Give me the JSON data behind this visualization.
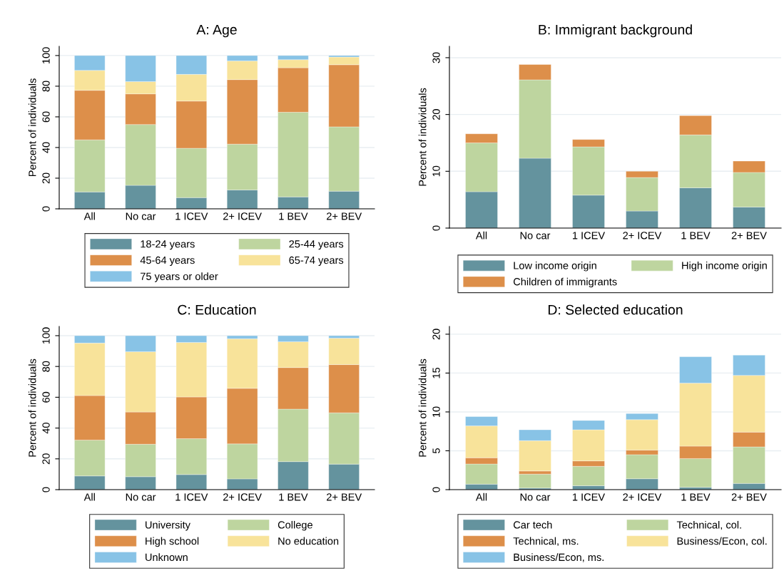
{
  "chart_data": [
    {
      "type": "bar",
      "stacked": true,
      "title": "A: Age",
      "ylabel": "Percent of individuals",
      "categories": [
        "All",
        "No car",
        "1 ICEV",
        "2+ ICEV",
        "1 BEV",
        "2+ BEV"
      ],
      "ylim": [
        0,
        106
      ],
      "yticks": [
        0,
        20,
        40,
        60,
        80,
        100
      ],
      "grid": "y",
      "legend": "bottom",
      "series": [
        {
          "name": "18-24 years",
          "color": "#64939e",
          "values": [
            11,
            15.3,
            7.3,
            12.3,
            7.8,
            11.5
          ]
        },
        {
          "name": "25-44 years",
          "color": "#bed59f",
          "values": [
            34,
            39.7,
            32.2,
            29.9,
            55.2,
            42
          ]
        },
        {
          "name": "45-64 years",
          "color": "#dd8f4a",
          "values": [
            32.3,
            20,
            30.8,
            42.1,
            29,
            40.5
          ]
        },
        {
          "name": "65-74 years",
          "color": "#f8e39a",
          "values": [
            13,
            8,
            17.4,
            12.2,
            5.3,
            5
          ]
        },
        {
          "name": "75 years or older",
          "color": "#88c3e6",
          "values": [
            9.7,
            17,
            12.3,
            3.5,
            2.7,
            1
          ]
        }
      ]
    },
    {
      "type": "bar",
      "stacked": true,
      "title": "B: Immigrant background",
      "ylabel": "Percent of individuals",
      "categories": [
        "All",
        "No car",
        "1 ICEV",
        "2+ ICEV",
        "1 BEV",
        "2+ BEV"
      ],
      "ylim": [
        0,
        32
      ],
      "yticks": [
        0,
        10,
        20,
        30
      ],
      "grid": "y",
      "legend": "bottom",
      "series": [
        {
          "name": "Low income origin",
          "color": "#64939e",
          "values": [
            6.4,
            12.3,
            5.8,
            3.0,
            7.1,
            3.7
          ]
        },
        {
          "name": "High income origin",
          "color": "#bed59f",
          "values": [
            8.6,
            13.8,
            8.5,
            5.9,
            9.3,
            6.1
          ]
        },
        {
          "name": "Children of immigrants",
          "color": "#dd8f4a",
          "values": [
            1.6,
            2.7,
            1.3,
            1.1,
            3.4,
            2.0
          ]
        }
      ]
    },
    {
      "type": "bar",
      "stacked": true,
      "title": "C: Education",
      "ylabel": "Percent of individuals",
      "categories": [
        "All",
        "No car",
        "1 ICEV",
        "2+ ICEV",
        "1 BEV",
        "2+ BEV"
      ],
      "ylim": [
        0,
        106
      ],
      "yticks": [
        0,
        20,
        40,
        60,
        80,
        100
      ],
      "grid": "y",
      "legend": "bottom",
      "series": [
        {
          "name": "University",
          "color": "#64939e",
          "values": [
            8.9,
            8.4,
            9.8,
            7.0,
            18.2,
            16.6
          ]
        },
        {
          "name": "College",
          "color": "#bed59f",
          "values": [
            23.3,
            21.1,
            23.3,
            22.7,
            34.1,
            33.3
          ]
        },
        {
          "name": "High school",
          "color": "#dd8f4a",
          "values": [
            28.9,
            20.9,
            27.1,
            36.1,
            27.0,
            31.3
          ]
        },
        {
          "name": "No education",
          "color": "#f8e39a",
          "values": [
            34.1,
            39.2,
            35.4,
            32.2,
            16.8,
            17.2
          ]
        },
        {
          "name": "Unknown",
          "color": "#88c3e6",
          "values": [
            4.8,
            10.4,
            4.4,
            2.0,
            3.9,
            1.6
          ]
        }
      ]
    },
    {
      "type": "bar",
      "stacked": true,
      "title": "D: Selected education",
      "ylabel": "Percent of individuals",
      "categories": [
        "All",
        "No car",
        "1 ICEV",
        "2+ ICEV",
        "1 BEV",
        "2+ BEV"
      ],
      "ylim": [
        0,
        21
      ],
      "yticks": [
        0,
        5,
        10,
        15,
        20
      ],
      "grid": "y",
      "legend": "bottom",
      "series": [
        {
          "name": "Car tech",
          "color": "#64939e",
          "values": [
            0.7,
            0.2,
            0.5,
            1.4,
            0.3,
            0.8
          ]
        },
        {
          "name": "Technical, col.",
          "color": "#bed59f",
          "values": [
            2.6,
            1.8,
            2.5,
            3.1,
            3.7,
            4.7
          ]
        },
        {
          "name": "Technical, ms.",
          "color": "#dd8f4a",
          "values": [
            0.8,
            0.4,
            0.7,
            0.6,
            1.6,
            1.9
          ]
        },
        {
          "name": "Business/Econ, col.",
          "color": "#f8e39a",
          "values": [
            4.1,
            3.9,
            4.0,
            3.9,
            8.1,
            7.3
          ]
        },
        {
          "name": "Business/Econ, ms.",
          "color": "#88c3e6",
          "values": [
            1.2,
            1.4,
            1.2,
            0.8,
            3.4,
            2.6
          ]
        }
      ]
    }
  ]
}
